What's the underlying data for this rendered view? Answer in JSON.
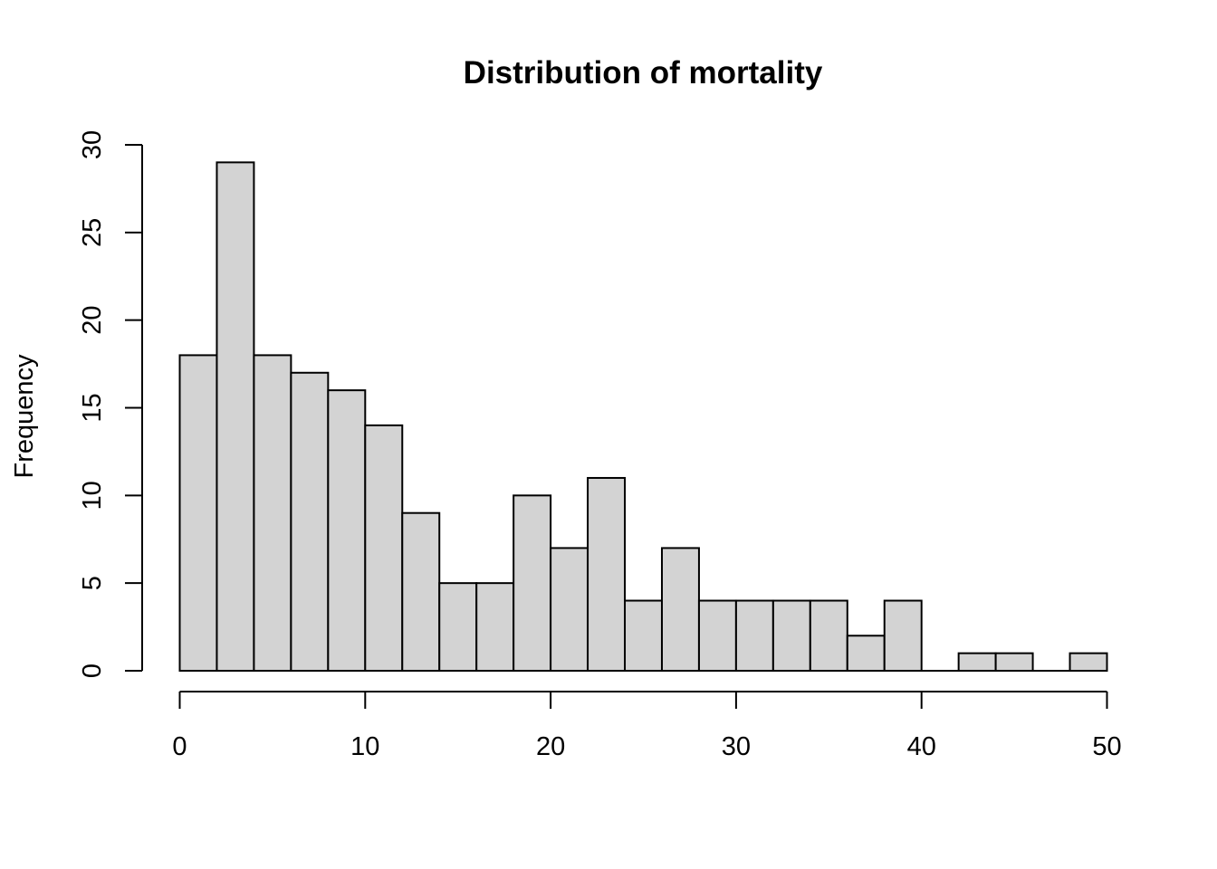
{
  "chart_data": {
    "type": "bar",
    "title": "Distribution of mortality",
    "xlabel": "",
    "ylabel": "Frequency",
    "bin_edges": [
      0,
      2,
      4,
      6,
      8,
      10,
      12,
      14,
      16,
      18,
      20,
      22,
      24,
      26,
      28,
      30,
      32,
      34,
      36,
      38,
      40,
      42,
      44,
      46,
      48,
      50
    ],
    "values": [
      18,
      29,
      18,
      17,
      16,
      14,
      9,
      5,
      5,
      10,
      7,
      11,
      4,
      7,
      4,
      4,
      4,
      4,
      2,
      4,
      0,
      1,
      1,
      0,
      1
    ],
    "xlim": [
      0,
      50
    ],
    "ylim": [
      0,
      30
    ],
    "x_ticks": [
      0,
      10,
      20,
      30,
      40,
      50
    ],
    "y_ticks": [
      0,
      5,
      10,
      15,
      20,
      25,
      30
    ],
    "grid": false,
    "colors": {
      "bar_fill": "#d3d3d3",
      "bar_stroke": "#000000"
    }
  }
}
